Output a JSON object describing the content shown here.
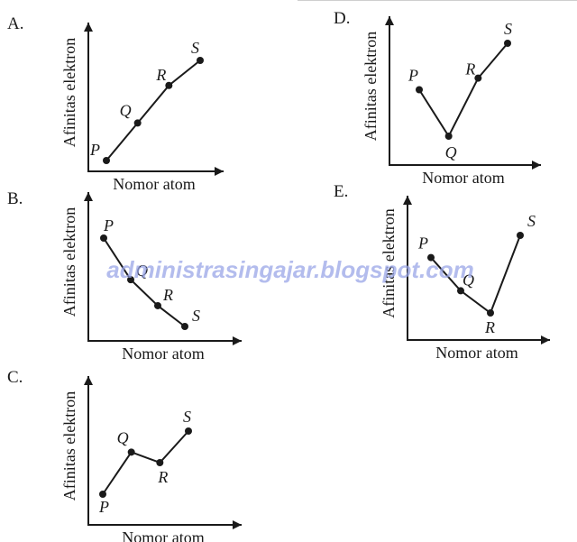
{
  "watermark": "administrasingajar.blogspot.com",
  "chart_data": [
    {
      "type": "line",
      "option": "A.",
      "xlabel": "Nomor atom",
      "ylabel": "Afinitas elektron",
      "points": [
        {
          "label": "P",
          "x": 1,
          "y": 1
        },
        {
          "label": "Q",
          "x": 2,
          "y": 4
        },
        {
          "label": "R",
          "x": 3,
          "y": 7
        },
        {
          "label": "S",
          "x": 4,
          "y": 9
        }
      ]
    },
    {
      "type": "line",
      "option": "B.",
      "xlabel": "Nomor atom",
      "ylabel": "Afinitas elektron",
      "points": [
        {
          "label": "P",
          "x": 1,
          "y": 9
        },
        {
          "label": "Q",
          "x": 2,
          "y": 5
        },
        {
          "label": "R",
          "x": 3,
          "y": 2.5
        },
        {
          "label": "S",
          "x": 4,
          "y": 0.5
        }
      ]
    },
    {
      "type": "line",
      "option": "C.",
      "xlabel": "Nomor atom",
      "ylabel": "Afinitas elektron",
      "points": [
        {
          "label": "P",
          "x": 1,
          "y": 1
        },
        {
          "label": "Q",
          "x": 2,
          "y": 5
        },
        {
          "label": "R",
          "x": 3,
          "y": 4
        },
        {
          "label": "S",
          "x": 4,
          "y": 7
        }
      ]
    },
    {
      "type": "line",
      "option": "D.",
      "xlabel": "Nomor atom",
      "ylabel": "Afinitas elektron",
      "points": [
        {
          "label": "P",
          "x": 1,
          "y": 6
        },
        {
          "label": "Q",
          "x": 2,
          "y": 2
        },
        {
          "label": "R",
          "x": 3,
          "y": 7
        },
        {
          "label": "S",
          "x": 4,
          "y": 10
        }
      ]
    },
    {
      "type": "line",
      "option": "E.",
      "xlabel": "Nomor atom",
      "ylabel": "Afinitas elektron",
      "points": [
        {
          "label": "P",
          "x": 1,
          "y": 7
        },
        {
          "label": "Q",
          "x": 2,
          "y": 4
        },
        {
          "label": "R",
          "x": 3,
          "y": 2
        },
        {
          "label": "S",
          "x": 4,
          "y": 9
        }
      ]
    }
  ]
}
